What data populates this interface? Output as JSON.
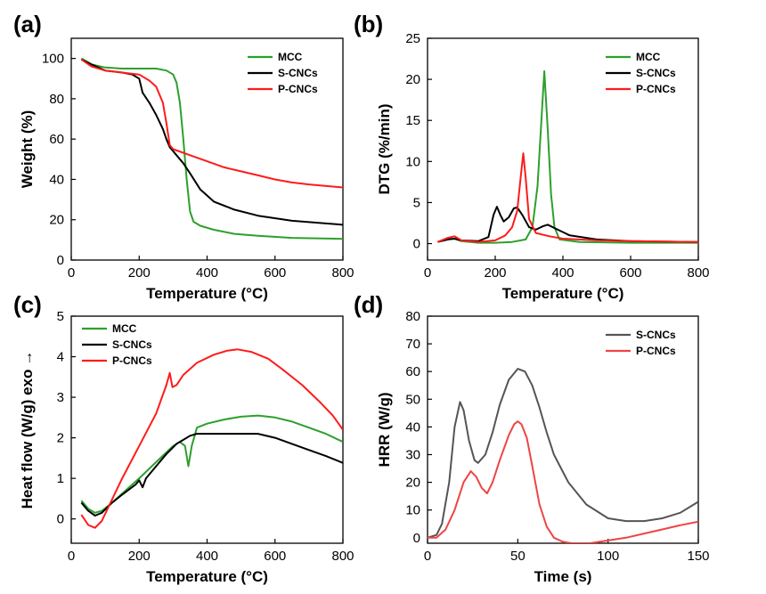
{
  "chart_data": [
    {
      "panel": "(a)",
      "type": "line",
      "xlabel": "Temperature (°C)",
      "ylabel": "Weight (%)",
      "xlim": [
        0,
        800
      ],
      "ylim": [
        0,
        110
      ],
      "xticks": [
        0,
        200,
        400,
        600,
        800
      ],
      "yticks": [
        0,
        20,
        40,
        60,
        80,
        100
      ],
      "legend_position": "top-right",
      "series": [
        {
          "name": "MCC",
          "color": "#2ca02c",
          "points": [
            [
              30,
              100
            ],
            [
              60,
              97
            ],
            [
              100,
              95.5
            ],
            [
              150,
              95
            ],
            [
              200,
              95
            ],
            [
              250,
              95
            ],
            [
              280,
              94
            ],
            [
              300,
              92
            ],
            [
              310,
              88
            ],
            [
              320,
              78
            ],
            [
              330,
              60
            ],
            [
              340,
              40
            ],
            [
              350,
              24
            ],
            [
              360,
              19
            ],
            [
              380,
              17
            ],
            [
              420,
              15
            ],
            [
              480,
              13
            ],
            [
              550,
              12
            ],
            [
              650,
              11
            ],
            [
              800,
              10.5
            ]
          ]
        },
        {
          "name": "S-CNCs",
          "color": "#000000",
          "points": [
            [
              30,
              99.5
            ],
            [
              60,
              97
            ],
            [
              100,
              94
            ],
            [
              150,
              93
            ],
            [
              180,
              92
            ],
            [
              200,
              90
            ],
            [
              210,
              83
            ],
            [
              230,
              78
            ],
            [
              250,
              72
            ],
            [
              270,
              65
            ],
            [
              280,
              60
            ],
            [
              290,
              56
            ],
            [
              310,
              52
            ],
            [
              330,
              48
            ],
            [
              350,
              43
            ],
            [
              380,
              35
            ],
            [
              420,
              29
            ],
            [
              480,
              25
            ],
            [
              550,
              22
            ],
            [
              650,
              19.5
            ],
            [
              800,
              17.5
            ]
          ]
        },
        {
          "name": "P-CNCs",
          "color": "#ff1a1a",
          "points": [
            [
              30,
              99.5
            ],
            [
              60,
              96
            ],
            [
              100,
              94
            ],
            [
              150,
              93
            ],
            [
              200,
              92
            ],
            [
              230,
              89
            ],
            [
              250,
              86
            ],
            [
              270,
              78
            ],
            [
              280,
              68
            ],
            [
              290,
              57
            ],
            [
              300,
              55
            ],
            [
              350,
              52
            ],
            [
              400,
              49
            ],
            [
              450,
              46
            ],
            [
              500,
              44
            ],
            [
              550,
              42
            ],
            [
              600,
              40
            ],
            [
              650,
              38.5
            ],
            [
              700,
              37.5
            ],
            [
              800,
              36
            ]
          ]
        }
      ]
    },
    {
      "panel": "(b)",
      "type": "line",
      "xlabel": "Temperature (°C)",
      "ylabel": "DTG (%/min)",
      "xlim": [
        0,
        800
      ],
      "ylim": [
        -2,
        25
      ],
      "xticks": [
        0,
        200,
        400,
        600,
        800
      ],
      "yticks": [
        0,
        5,
        10,
        15,
        20,
        25
      ],
      "legend_position": "top-right",
      "series": [
        {
          "name": "MCC",
          "color": "#2ca02c",
          "points": [
            [
              30,
              0.2
            ],
            [
              60,
              0.5
            ],
            [
              80,
              0.6
            ],
            [
              100,
              0.3
            ],
            [
              150,
              0.1
            ],
            [
              200,
              0.1
            ],
            [
              250,
              0.2
            ],
            [
              290,
              0.5
            ],
            [
              310,
              2
            ],
            [
              325,
              7
            ],
            [
              335,
              14
            ],
            [
              345,
              21
            ],
            [
              355,
              14
            ],
            [
              365,
              6
            ],
            [
              375,
              2
            ],
            [
              390,
              0.5
            ],
            [
              450,
              0.2
            ],
            [
              600,
              0.1
            ],
            [
              800,
              0.1
            ]
          ]
        },
        {
          "name": "S-CNCs",
          "color": "#000000",
          "points": [
            [
              30,
              0.2
            ],
            [
              60,
              0.5
            ],
            [
              80,
              0.6
            ],
            [
              100,
              0.4
            ],
            [
              150,
              0.3
            ],
            [
              180,
              0.8
            ],
            [
              195,
              3.5
            ],
            [
              205,
              4.5
            ],
            [
              215,
              3.5
            ],
            [
              225,
              2.7
            ],
            [
              240,
              3.2
            ],
            [
              255,
              4.3
            ],
            [
              265,
              4.4
            ],
            [
              280,
              3.5
            ],
            [
              300,
              2
            ],
            [
              320,
              1.7
            ],
            [
              340,
              2.1
            ],
            [
              355,
              2.3
            ],
            [
              380,
              1.8
            ],
            [
              420,
              1
            ],
            [
              500,
              0.5
            ],
            [
              600,
              0.3
            ],
            [
              800,
              0.2
            ]
          ]
        },
        {
          "name": "P-CNCs",
          "color": "#ff1a1a",
          "points": [
            [
              30,
              0.2
            ],
            [
              60,
              0.7
            ],
            [
              80,
              0.9
            ],
            [
              100,
              0.4
            ],
            [
              150,
              0.2
            ],
            [
              200,
              0.4
            ],
            [
              230,
              1
            ],
            [
              250,
              2
            ],
            [
              265,
              4
            ],
            [
              275,
              8
            ],
            [
              283,
              11
            ],
            [
              290,
              8
            ],
            [
              300,
              3
            ],
            [
              320,
              1.3
            ],
            [
              360,
              0.9
            ],
            [
              400,
              0.6
            ],
            [
              500,
              0.4
            ],
            [
              600,
              0.3
            ],
            [
              800,
              0.2
            ]
          ]
        }
      ]
    },
    {
      "panel": "(c)",
      "type": "line",
      "xlabel": "Temperature (°C)",
      "ylabel": "Heat flow (W/g) exo",
      "xlim": [
        0,
        800
      ],
      "ylim": [
        -0.6,
        5
      ],
      "xticks": [
        0,
        200,
        400,
        600,
        800
      ],
      "yticks": [
        0,
        1,
        2,
        3,
        4,
        5
      ],
      "legend_position": "top-left",
      "series": [
        {
          "name": "MCC",
          "color": "#2ca02c",
          "points": [
            [
              30,
              0.45
            ],
            [
              50,
              0.25
            ],
            [
              70,
              0.15
            ],
            [
              90,
              0.2
            ],
            [
              120,
              0.4
            ],
            [
              160,
              0.7
            ],
            [
              200,
              1.0
            ],
            [
              250,
              1.4
            ],
            [
              300,
              1.8
            ],
            [
              320,
              1.9
            ],
            [
              335,
              1.8
            ],
            [
              345,
              1.3
            ],
            [
              355,
              1.8
            ],
            [
              370,
              2.25
            ],
            [
              400,
              2.35
            ],
            [
              450,
              2.45
            ],
            [
              500,
              2.52
            ],
            [
              550,
              2.55
            ],
            [
              600,
              2.5
            ],
            [
              650,
              2.4
            ],
            [
              700,
              2.25
            ],
            [
              750,
              2.1
            ],
            [
              800,
              1.9
            ]
          ]
        },
        {
          "name": "S-CNCs",
          "color": "#000000",
          "points": [
            [
              30,
              0.4
            ],
            [
              50,
              0.2
            ],
            [
              70,
              0.08
            ],
            [
              90,
              0.15
            ],
            [
              120,
              0.4
            ],
            [
              150,
              0.6
            ],
            [
              190,
              0.85
            ],
            [
              200,
              0.95
            ],
            [
              210,
              0.78
            ],
            [
              220,
              1.0
            ],
            [
              250,
              1.3
            ],
            [
              280,
              1.6
            ],
            [
              310,
              1.85
            ],
            [
              330,
              1.95
            ],
            [
              350,
              2.05
            ],
            [
              370,
              2.1
            ],
            [
              400,
              2.1
            ],
            [
              450,
              2.1
            ],
            [
              500,
              2.1
            ],
            [
              550,
              2.1
            ],
            [
              600,
              2.0
            ],
            [
              650,
              1.85
            ],
            [
              700,
              1.7
            ],
            [
              750,
              1.55
            ],
            [
              800,
              1.38
            ]
          ]
        },
        {
          "name": "P-CNCs",
          "color": "#ff1a1a",
          "points": [
            [
              30,
              0.1
            ],
            [
              50,
              -0.15
            ],
            [
              70,
              -0.22
            ],
            [
              90,
              -0.05
            ],
            [
              110,
              0.3
            ],
            [
              150,
              1.0
            ],
            [
              200,
              1.8
            ],
            [
              250,
              2.6
            ],
            [
              280,
              3.3
            ],
            [
              290,
              3.6
            ],
            [
              298,
              3.25
            ],
            [
              310,
              3.3
            ],
            [
              330,
              3.55
            ],
            [
              370,
              3.85
            ],
            [
              420,
              4.05
            ],
            [
              460,
              4.15
            ],
            [
              490,
              4.18
            ],
            [
              530,
              4.12
            ],
            [
              580,
              3.95
            ],
            [
              620,
              3.7
            ],
            [
              680,
              3.3
            ],
            [
              730,
              2.9
            ],
            [
              770,
              2.55
            ],
            [
              800,
              2.2
            ]
          ]
        }
      ]
    },
    {
      "panel": "(d)",
      "type": "line",
      "xlabel": "Time (s)",
      "ylabel": "HRR (W/g)",
      "xlim": [
        0,
        150
      ],
      "ylim": [
        -2,
        80
      ],
      "xticks": [
        0,
        50,
        100,
        150
      ],
      "yticks": [
        0,
        10,
        20,
        30,
        40,
        50,
        60,
        70,
        80
      ],
      "legend_position": "top-right",
      "series": [
        {
          "name": "S-CNCs",
          "color": "#555555",
          "points": [
            [
              0,
              0
            ],
            [
              5,
              1
            ],
            [
              8,
              5
            ],
            [
              12,
              20
            ],
            [
              15,
              40
            ],
            [
              18,
              49
            ],
            [
              20,
              46
            ],
            [
              23,
              35
            ],
            [
              26,
              28
            ],
            [
              28,
              27
            ],
            [
              32,
              30
            ],
            [
              36,
              38
            ],
            [
              40,
              48
            ],
            [
              45,
              57
            ],
            [
              50,
              61
            ],
            [
              54,
              60
            ],
            [
              58,
              55
            ],
            [
              62,
              47
            ],
            [
              66,
              38
            ],
            [
              70,
              30
            ],
            [
              78,
              20
            ],
            [
              88,
              12
            ],
            [
              100,
              7
            ],
            [
              110,
              6
            ],
            [
              120,
              6
            ],
            [
              130,
              7
            ],
            [
              140,
              9
            ],
            [
              150,
              13
            ]
          ]
        },
        {
          "name": "P-CNCs",
          "color": "#ee4444",
          "points": [
            [
              0,
              0
            ],
            [
              5,
              0
            ],
            [
              10,
              3
            ],
            [
              15,
              10
            ],
            [
              20,
              20
            ],
            [
              24,
              24
            ],
            [
              27,
              22
            ],
            [
              30,
              18
            ],
            [
              33,
              16
            ],
            [
              36,
              20
            ],
            [
              40,
              28
            ],
            [
              45,
              37
            ],
            [
              48,
              41
            ],
            [
              50,
              42
            ],
            [
              52,
              41
            ],
            [
              55,
              36
            ],
            [
              58,
              26
            ],
            [
              62,
              12
            ],
            [
              66,
              4
            ],
            [
              70,
              0
            ],
            [
              75,
              -1.5
            ],
            [
              80,
              -2
            ],
            [
              90,
              -2
            ],
            [
              100,
              -1
            ],
            [
              110,
              0
            ],
            [
              120,
              1.5
            ],
            [
              130,
              3
            ],
            [
              140,
              4.5
            ],
            [
              150,
              5.8
            ]
          ]
        }
      ]
    }
  ],
  "axis_title_arrow": "→"
}
